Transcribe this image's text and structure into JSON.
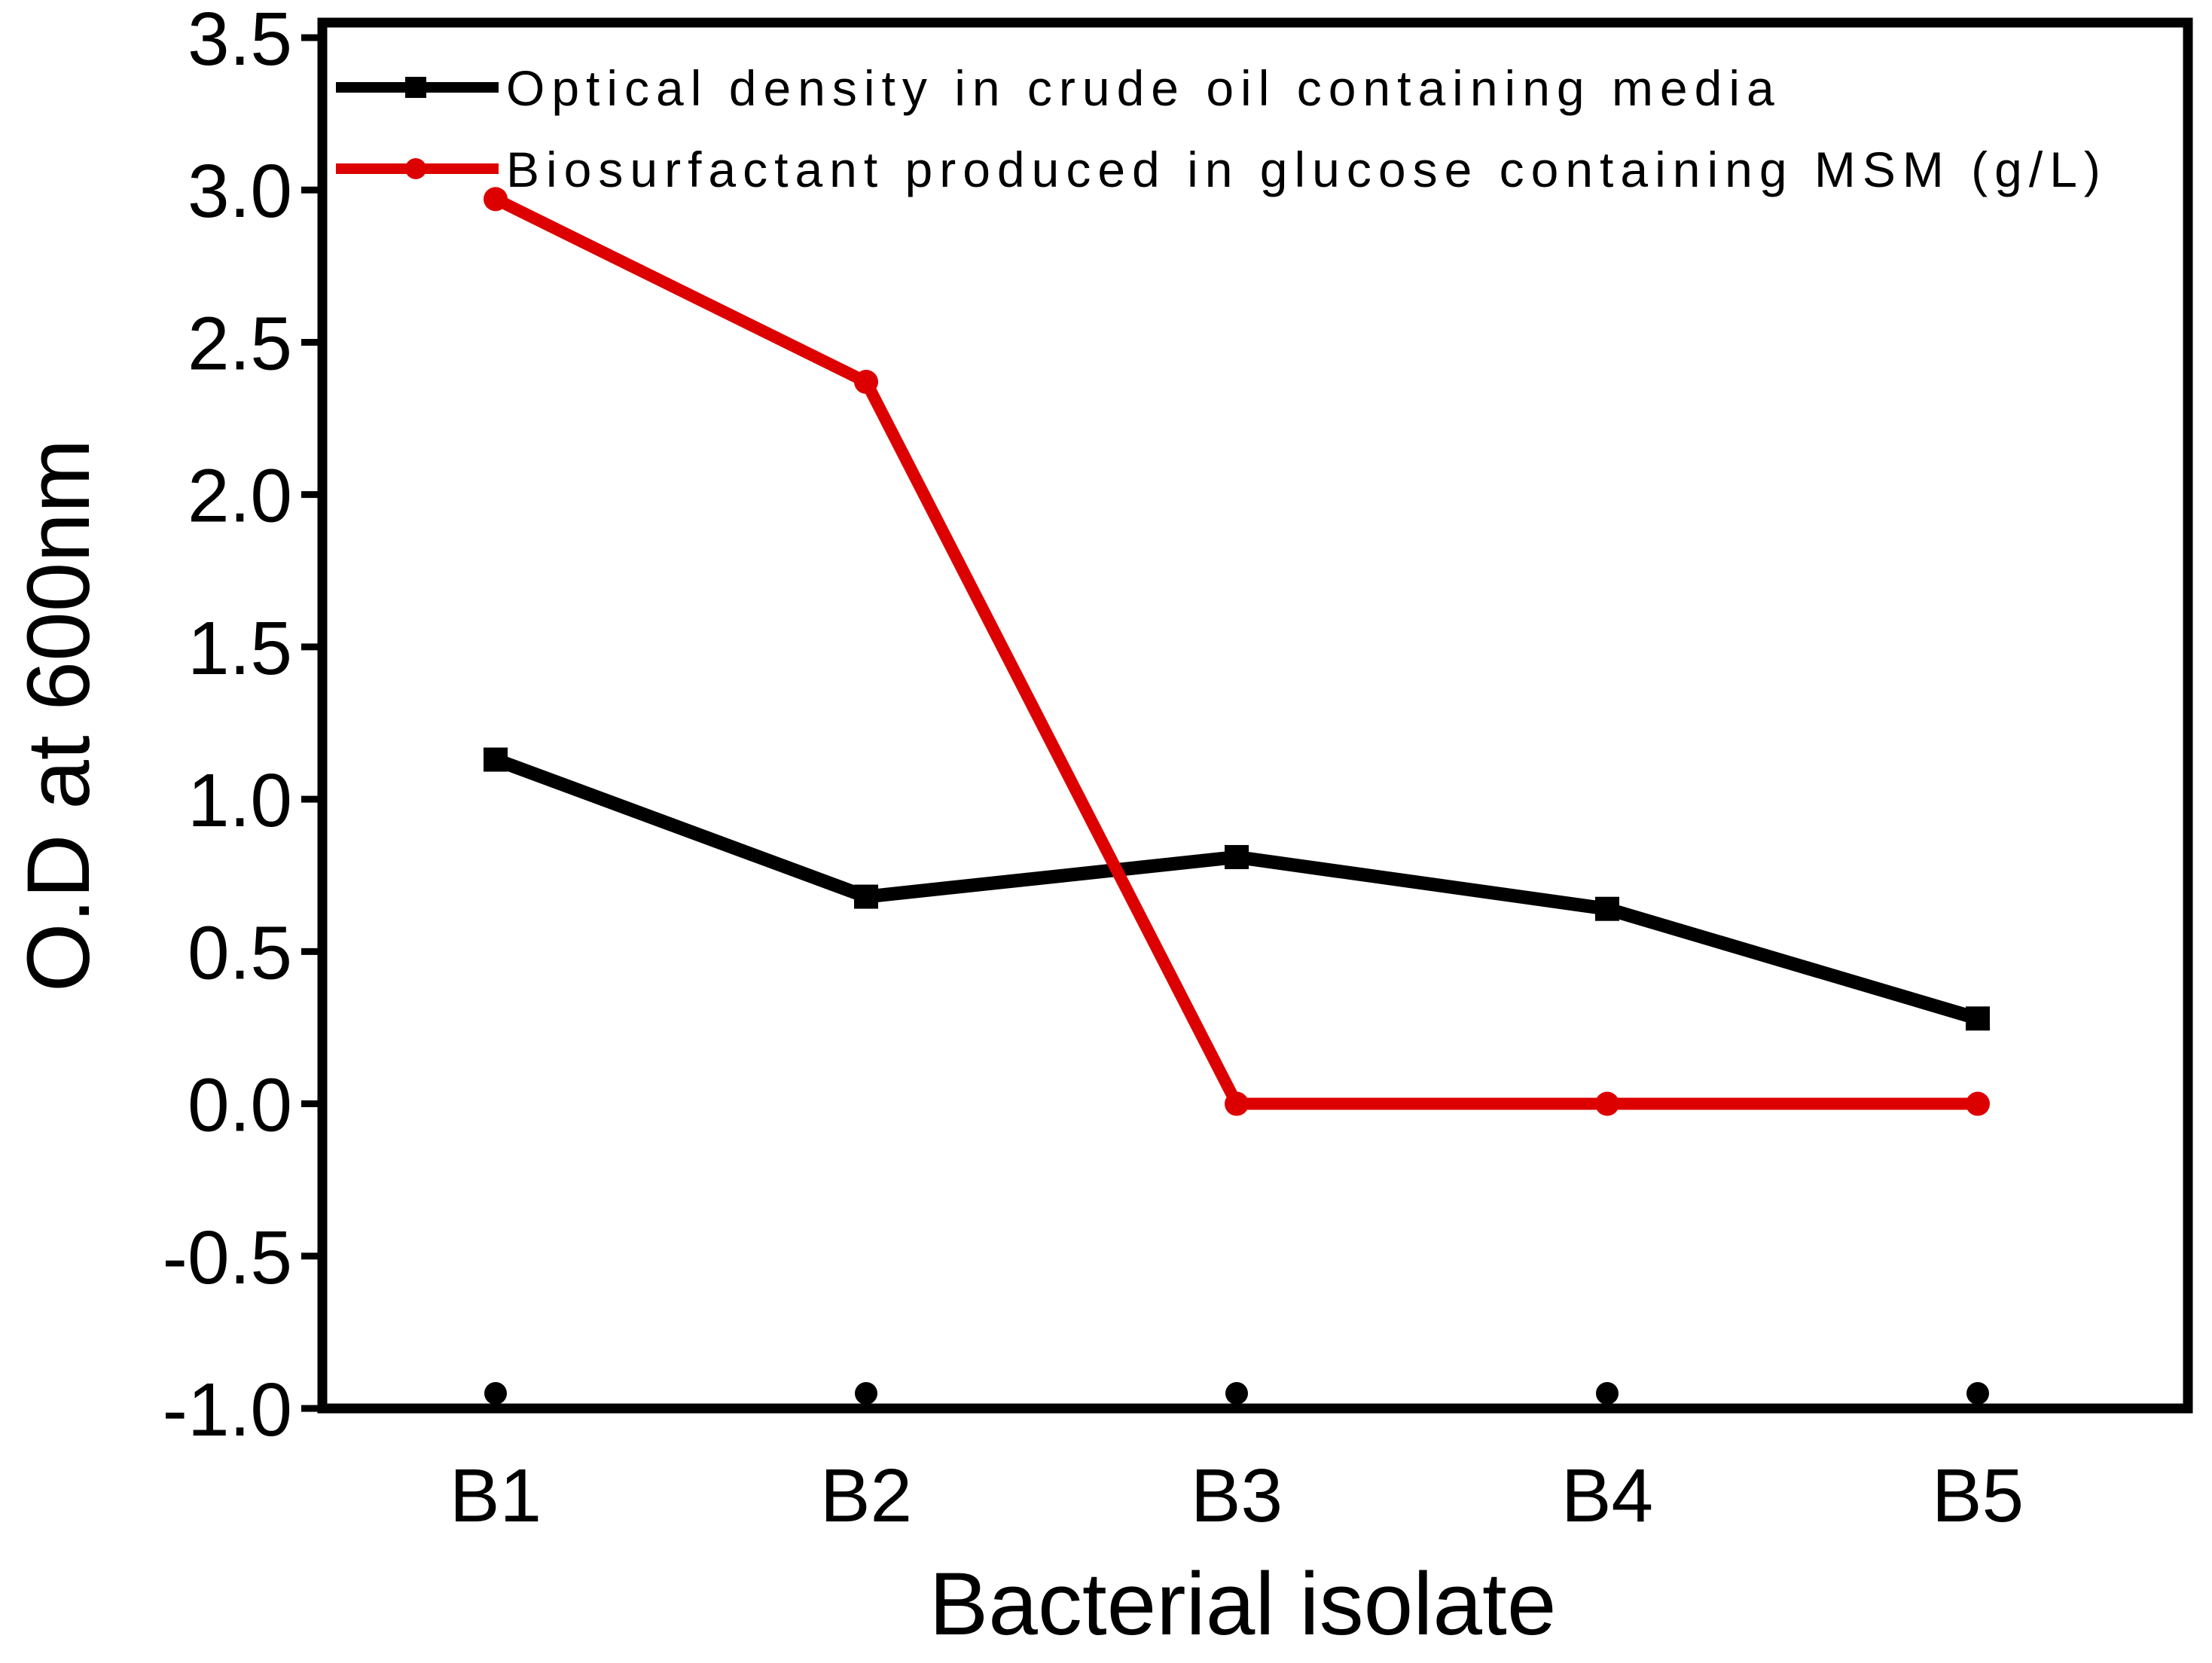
{
  "chart_data": {
    "type": "line",
    "title": "",
    "xlabel": "Bacterial isolate",
    "ylabel": "O.D at 600nm",
    "categories": [
      "B1",
      "B2",
      "B3",
      "B4",
      "B5"
    ],
    "ylim": [
      -1.0,
      3.5
    ],
    "yticks": [
      -1.0,
      -0.5,
      0.0,
      0.5,
      1.0,
      1.5,
      2.0,
      2.5,
      3.0,
      3.5
    ],
    "ytick_labels": [
      "-1.0",
      "-0.5",
      "0.0",
      "0.5",
      "1.0",
      "1.5",
      "2.0",
      "2.5",
      "3.0",
      "3.5"
    ],
    "grid": false,
    "legend_position": "top-left",
    "series": [
      {
        "name": "Optical density in crude oil containing media",
        "color": "#000000",
        "marker": "square",
        "values": [
          1.13,
          0.68,
          0.81,
          0.64,
          0.28
        ]
      },
      {
        "name": "Biosurfactant produced in glucose containing MSM (g/L)",
        "color": "#dd0000",
        "marker": "circle",
        "values": [
          2.97,
          2.37,
          0.0,
          0.0,
          0.0
        ]
      }
    ]
  }
}
